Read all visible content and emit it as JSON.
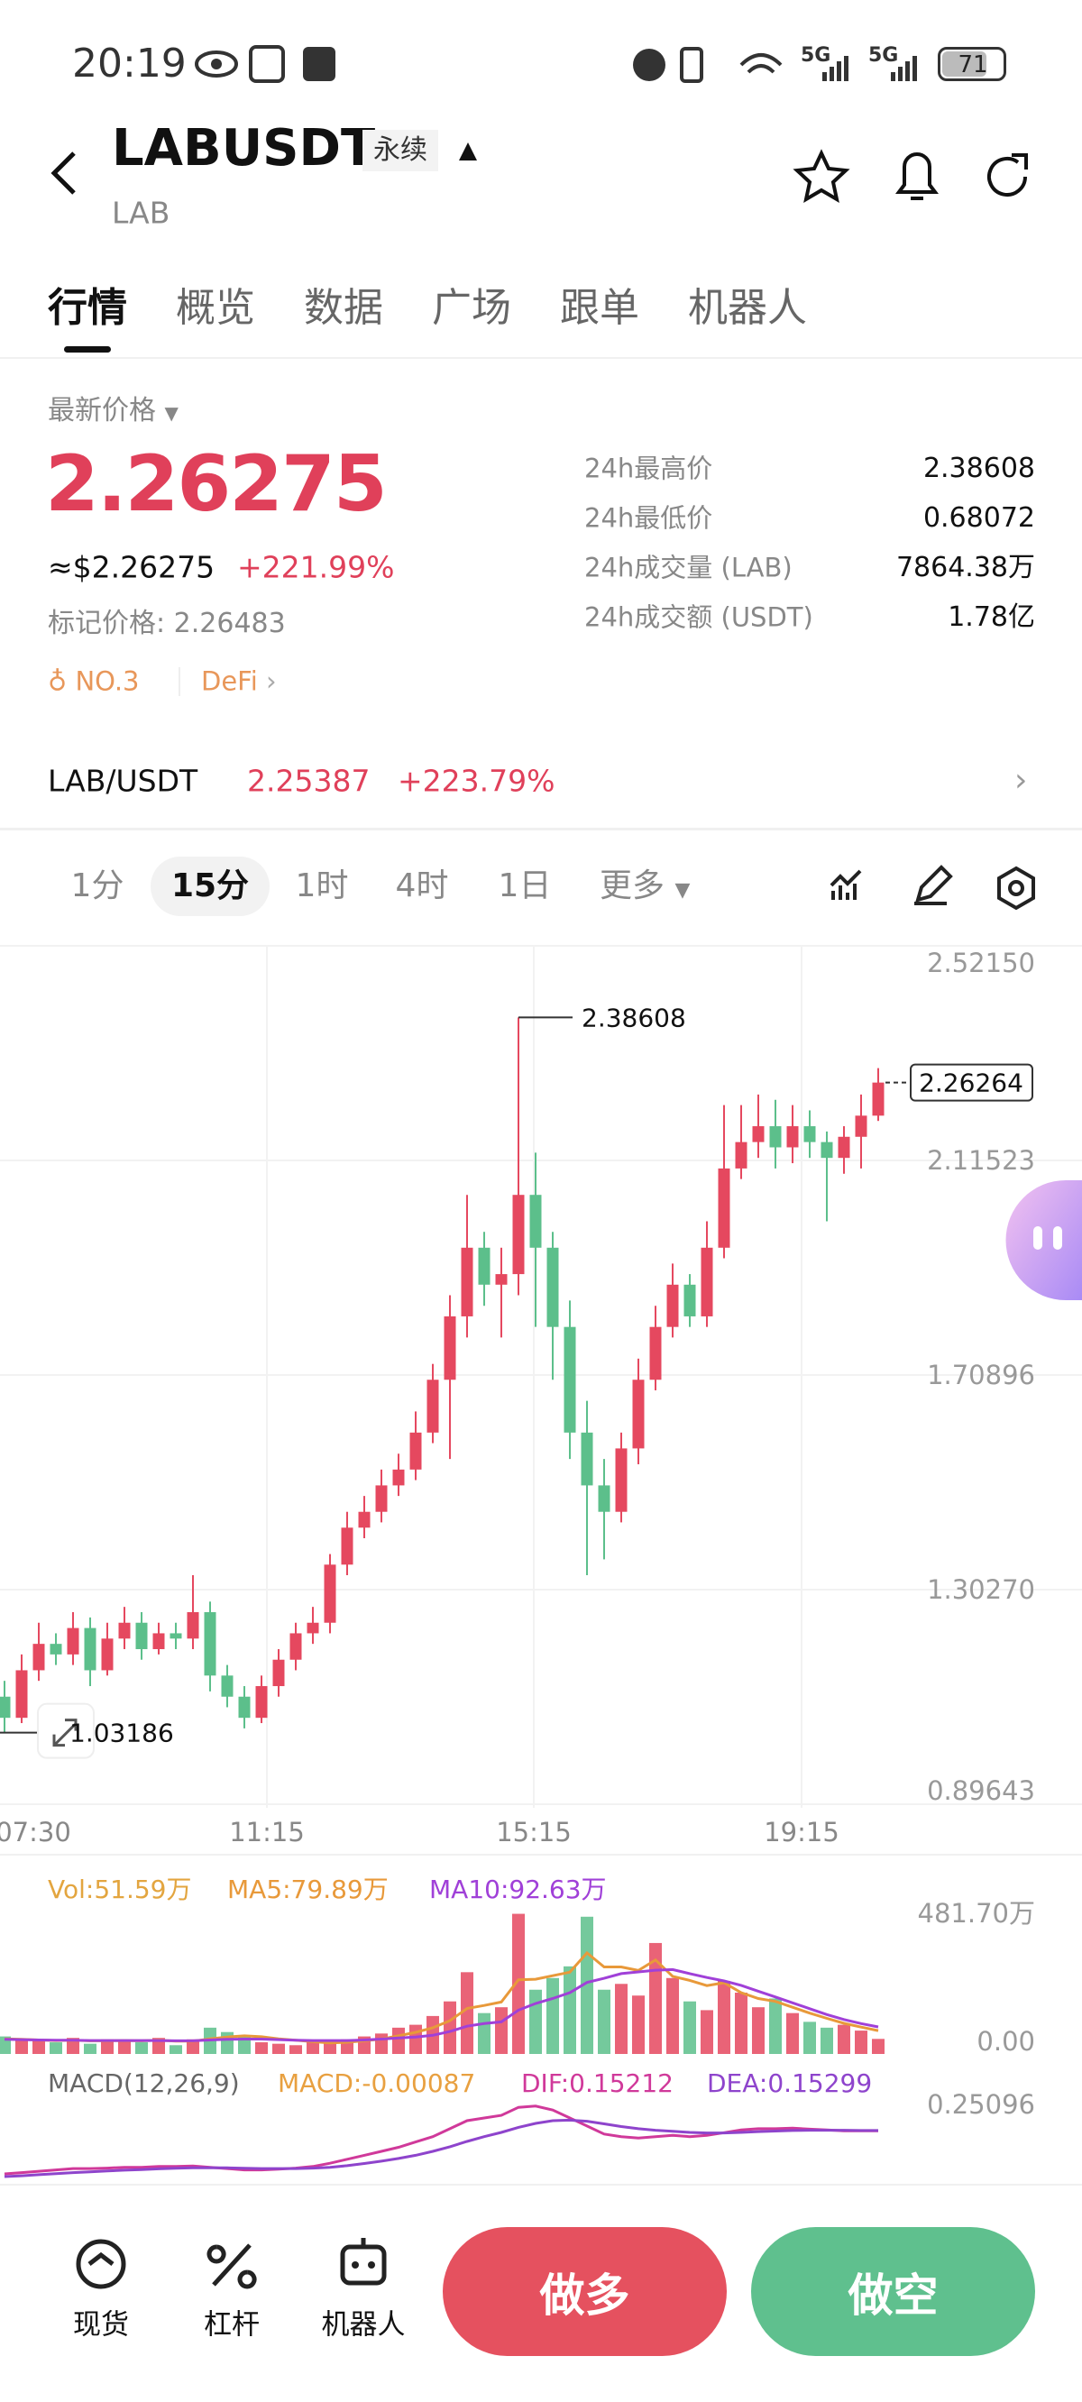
{
  "status_bar": {
    "time": "20:19",
    "network": [
      "5G",
      "5G"
    ],
    "battery": "71"
  },
  "header": {
    "symbol": "LABUSDT",
    "contract": "永续",
    "base": "LAB"
  },
  "tabs": {
    "items": [
      "行情",
      "概览",
      "数据",
      "广场",
      "跟单",
      "机器人"
    ],
    "active": 0
  },
  "ticker": {
    "price_label": "最新价格",
    "price": "2.26275",
    "usd_price": "≈$2.26275",
    "change": "+221.99%",
    "mark_price": "标记价格: 2.26483",
    "rank": "NO.3",
    "sector": "DeFi",
    "stats": [
      {
        "label": "24h最高价",
        "value": "2.38608"
      },
      {
        "label": "24h最低价",
        "value": "0.68072"
      },
      {
        "label": "24h成交量 (LAB)",
        "value": "7864.38万"
      },
      {
        "label": "24h成交额 (USDT)",
        "value": "1.78亿"
      }
    ]
  },
  "spot": {
    "pair": "LAB/USDT",
    "price": "2.25387",
    "change": "+223.79%"
  },
  "intervals": {
    "items": [
      "1分",
      "15分",
      "1时",
      "4时",
      "1日",
      "更多"
    ],
    "active": 1
  },
  "chart_data": [
    {
      "type": "candlestick",
      "open": [
        1.1,
        1.06,
        1.15,
        1.2,
        1.18,
        1.23,
        1.15,
        1.21,
        1.24,
        1.19,
        1.22,
        1.21,
        1.26,
        1.14,
        1.1,
        1.06,
        1.12,
        1.17,
        1.22,
        1.24,
        1.35,
        1.42,
        1.45,
        1.5,
        1.53,
        1.6,
        1.7,
        1.82,
        1.95,
        1.88,
        1.9,
        2.05,
        1.95,
        1.8,
        1.6,
        1.5,
        1.45,
        1.57,
        1.7,
        1.8,
        1.88,
        1.82,
        1.95,
        2.1,
        2.15,
        2.18,
        2.14,
        2.18,
        2.15,
        2.12,
        2.16,
        2.2
      ],
      "high": [
        1.13,
        1.18,
        1.24,
        1.22,
        1.26,
        1.25,
        1.24,
        1.27,
        1.26,
        1.24,
        1.24,
        1.33,
        1.28,
        1.16,
        1.12,
        1.14,
        1.19,
        1.24,
        1.27,
        1.37,
        1.45,
        1.48,
        1.53,
        1.56,
        1.64,
        1.73,
        1.86,
        2.05,
        1.98,
        1.95,
        2.38608,
        2.13,
        1.98,
        1.85,
        1.66,
        1.55,
        1.6,
        1.74,
        1.84,
        1.92,
        1.9,
        2.0,
        2.22,
        2.22,
        2.24,
        2.23,
        2.22,
        2.21,
        2.17,
        2.18,
        2.24,
        2.29
      ],
      "low": [
        1.03186,
        1.05,
        1.13,
        1.16,
        1.16,
        1.12,
        1.14,
        1.19,
        1.17,
        1.18,
        1.19,
        1.19,
        1.11,
        1.08,
        1.04,
        1.05,
        1.1,
        1.15,
        1.2,
        1.22,
        1.33,
        1.4,
        1.43,
        1.48,
        1.51,
        1.58,
        1.55,
        1.78,
        1.84,
        1.78,
        1.86,
        1.8,
        1.7,
        1.55,
        1.33,
        1.36,
        1.43,
        1.54,
        1.68,
        1.78,
        1.8,
        1.8,
        1.93,
        2.08,
        2.12,
        2.1,
        2.11,
        2.12,
        2.0,
        2.09,
        2.1,
        2.19
      ],
      "close": [
        1.06,
        1.15,
        1.2,
        1.18,
        1.23,
        1.15,
        1.21,
        1.24,
        1.19,
        1.22,
        1.21,
        1.26,
        1.14,
        1.1,
        1.06,
        1.12,
        1.17,
        1.22,
        1.24,
        1.35,
        1.42,
        1.45,
        1.5,
        1.53,
        1.6,
        1.7,
        1.82,
        1.95,
        1.88,
        1.9,
        2.05,
        1.95,
        1.8,
        1.6,
        1.5,
        1.45,
        1.57,
        1.7,
        1.8,
        1.88,
        1.82,
        1.95,
        2.1,
        2.15,
        2.18,
        2.14,
        2.18,
        2.15,
        2.12,
        2.16,
        2.2,
        2.26264
      ],
      "up_color": "#e5485f",
      "down_color": "#5cbf8b",
      "ylim": [
        0.89643,
        2.5215
      ],
      "yticks": [
        0.89643,
        {
          "value": 1.3027,
          "label": "1.30270"
        },
        1.70896,
        2.11523,
        {
          "value": 2.5215,
          "label": "2.52150"
        }
      ],
      "xticks": [
        "07:30",
        "11:15",
        "15:15",
        "19:15"
      ],
      "grid": true
    },
    {
      "type": "bar",
      "series": [
        {
          "name": "Vol:51.59万",
          "color": "#e3a53f",
          "values": [
            60,
            45,
            50,
            40,
            55,
            35,
            50,
            45,
            40,
            55,
            30,
            50,
            90,
            75,
            60,
            40,
            35,
            30,
            45,
            40,
            50,
            60,
            70,
            90,
            100,
            130,
            180,
            280,
            140,
            160,
            480,
            220,
            260,
            300,
            470,
            220,
            240,
            200,
            380,
            260,
            180,
            150,
            250,
            210,
            160,
            190,
            140,
            110,
            90,
            100,
            80,
            51.59
          ]
        },
        {
          "name": "MA5:79.89万",
          "color": "#e8993a",
          "values": [
            52,
            50,
            48,
            46,
            47,
            45,
            45,
            46,
            45,
            47,
            44,
            44,
            52,
            58,
            62,
            59,
            52,
            47,
            42,
            38,
            40,
            45,
            51,
            62,
            74,
            90,
            114,
            156,
            166,
            178,
            254,
            256,
            268,
            280,
            346,
            298,
            298,
            286,
            322,
            266,
            252,
            234,
            244,
            210,
            190,
            180,
            160,
            140,
            122,
            105,
            92,
            79.89
          ]
        },
        {
          "name": "MA10:92.63万",
          "color": "#a040d8",
          "values": [
            50,
            49,
            48,
            47,
            47,
            46,
            46,
            46,
            46,
            46,
            45,
            45,
            48,
            50,
            51,
            51,
            49,
            47,
            46,
            46,
            46,
            48,
            51,
            55,
            58,
            64,
            77,
            95,
            104,
            110,
            150,
            173,
            190,
            210,
            245,
            259,
            275,
            281,
            287,
            289,
            275,
            262,
            250,
            235,
            215,
            195,
            175,
            155,
            135,
            118,
            104,
            92.63
          ]
        }
      ],
      "ylim": [
        0,
        481.7
      ],
      "yticks": [
        {
          "value": 0,
          "label": "0.00"
        },
        {
          "value": 481.7,
          "label": "481.70万"
        }
      ]
    },
    {
      "type": "line",
      "title": "MACD(12,26,9)",
      "macd": {
        "label": "MACD:-0.00087",
        "color": "#e8a040"
      },
      "series": [
        {
          "name": "DIF:0.15212",
          "color": "#d0399a",
          "values": [
            -0.01,
            -0.005,
            0,
            0.005,
            0.01,
            0.01,
            0.012,
            0.015,
            0.015,
            0.018,
            0.018,
            0.02,
            0.015,
            0.01,
            0.005,
            0.005,
            0.008,
            0.012,
            0.018,
            0.03,
            0.045,
            0.06,
            0.075,
            0.09,
            0.11,
            0.13,
            0.16,
            0.19,
            0.2,
            0.21,
            0.24,
            0.245,
            0.23,
            0.2,
            0.17,
            0.14,
            0.13,
            0.125,
            0.13,
            0.135,
            0.13,
            0.135,
            0.145,
            0.155,
            0.16,
            0.16,
            0.162,
            0.158,
            0.155,
            0.152,
            0.152,
            0.15212
          ]
        },
        {
          "name": "DEA:0.15299",
          "color": "#8e44cc",
          "values": [
            -0.02,
            -0.017,
            -0.013,
            -0.009,
            -0.005,
            -0.002,
            0.001,
            0.004,
            0.006,
            0.009,
            0.011,
            0.013,
            0.013,
            0.013,
            0.011,
            0.01,
            0.01,
            0.01,
            0.012,
            0.015,
            0.021,
            0.029,
            0.038,
            0.048,
            0.06,
            0.075,
            0.092,
            0.112,
            0.13,
            0.146,
            0.165,
            0.18,
            0.19,
            0.192,
            0.188,
            0.178,
            0.168,
            0.16,
            0.154,
            0.15,
            0.146,
            0.144,
            0.144,
            0.146,
            0.149,
            0.151,
            0.153,
            0.154,
            0.154,
            0.154,
            0.153,
            0.15299
          ]
        }
      ],
      "ylim": [
        -0.02,
        0.25096
      ],
      "yticks": [
        0.25096
      ]
    }
  ],
  "actions": {
    "items": [
      "现货",
      "杠杆",
      "机器人"
    ],
    "long": "做多",
    "short": "做空"
  }
}
